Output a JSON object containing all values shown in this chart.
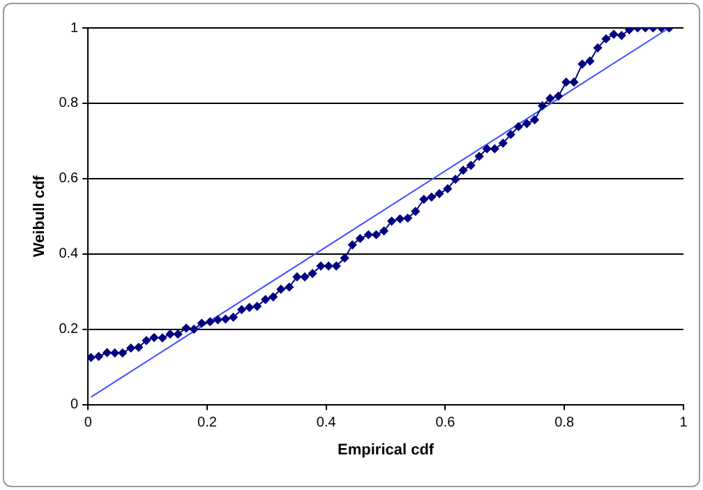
{
  "chart_data": {
    "type": "line",
    "xlabel": "Empirical cdf",
    "ylabel": "Weibull cdf",
    "xlim": [
      0,
      1
    ],
    "xticks": [
      0,
      0.2,
      0.4,
      0.6,
      0.8,
      1
    ],
    "ylim": [
      0,
      1
    ],
    "yticks": [
      0,
      0.2,
      0.4,
      0.6,
      0.8,
      1
    ],
    "grid": "y",
    "legend": false,
    "series": [
      {
        "type": "line",
        "color": "#000080",
        "marker": "diamond",
        "x": [
          0.005,
          0.018,
          0.032,
          0.045,
          0.058,
          0.072,
          0.085,
          0.098,
          0.111,
          0.125,
          0.138,
          0.151,
          0.165,
          0.178,
          0.191,
          0.205,
          0.218,
          0.231,
          0.244,
          0.258,
          0.271,
          0.284,
          0.298,
          0.311,
          0.324,
          0.338,
          0.351,
          0.364,
          0.377,
          0.391,
          0.404,
          0.417,
          0.431,
          0.444,
          0.457,
          0.471,
          0.484,
          0.497,
          0.51,
          0.524,
          0.537,
          0.55,
          0.564,
          0.577,
          0.59,
          0.604,
          0.617,
          0.63,
          0.643,
          0.657,
          0.67,
          0.683,
          0.697,
          0.71,
          0.723,
          0.737,
          0.75,
          0.763,
          0.776,
          0.79,
          0.803,
          0.816,
          0.83,
          0.843,
          0.856,
          0.87,
          0.883,
          0.896,
          0.909,
          0.923,
          0.936,
          0.949,
          0.963,
          0.976
        ],
        "values": [
          0.125,
          0.128,
          0.138,
          0.137,
          0.137,
          0.15,
          0.152,
          0.17,
          0.178,
          0.177,
          0.187,
          0.187,
          0.203,
          0.2,
          0.216,
          0.22,
          0.225,
          0.227,
          0.232,
          0.252,
          0.258,
          0.261,
          0.279,
          0.286,
          0.306,
          0.312,
          0.339,
          0.339,
          0.348,
          0.368,
          0.368,
          0.368,
          0.389,
          0.424,
          0.441,
          0.451,
          0.451,
          0.461,
          0.487,
          0.493,
          0.495,
          0.513,
          0.545,
          0.551,
          0.56,
          0.573,
          0.598,
          0.622,
          0.635,
          0.659,
          0.679,
          0.679,
          0.694,
          0.717,
          0.738,
          0.746,
          0.756,
          0.793,
          0.813,
          0.819,
          0.856,
          0.856,
          0.904,
          0.912,
          0.947,
          0.971,
          0.983,
          0.98,
          0.995,
          1.0,
          1.0,
          1.0,
          1.0,
          1.0
        ]
      },
      {
        "type": "line",
        "color": "#3f51ff",
        "marker": "none",
        "x": [
          0.005,
          0.976
        ],
        "values": [
          0.02,
          1.0
        ]
      }
    ]
  }
}
